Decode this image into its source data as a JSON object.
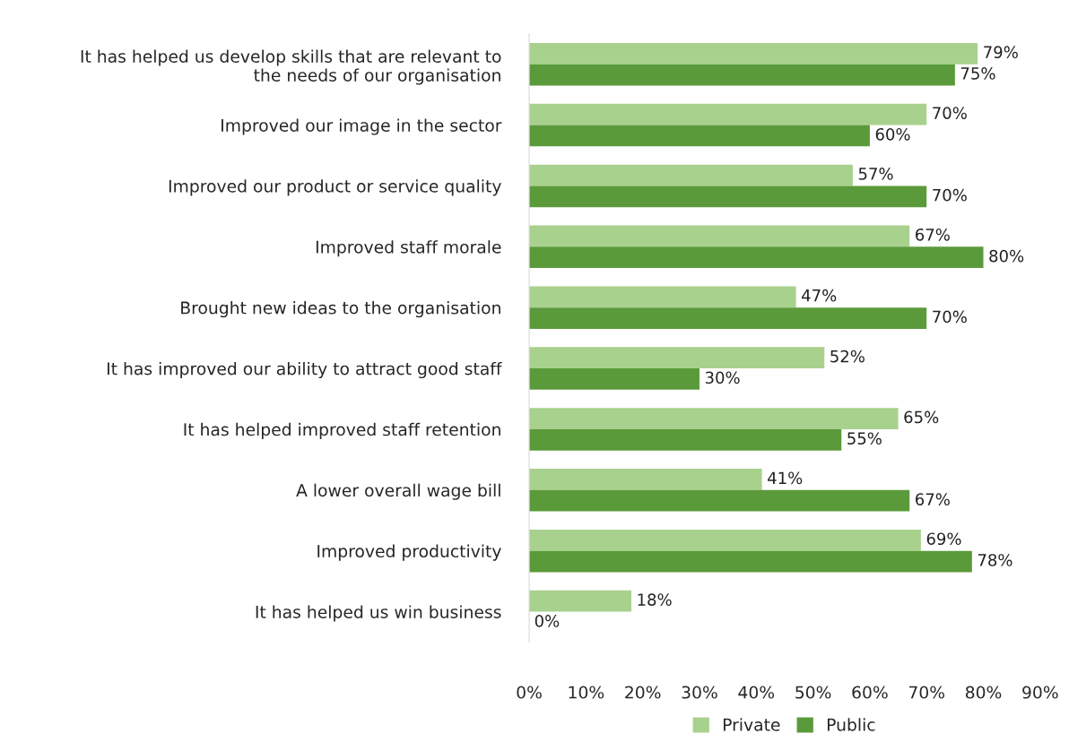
{
  "chart_data": {
    "type": "bar",
    "orientation": "horizontal",
    "categories": [
      "It has helped us develop skills that are relevant to\nthe needs of our organisation",
      "Improved our image in the sector",
      "Improved our product or service quality",
      "Improved staff morale",
      "Brought new ideas to the organisation",
      "It has improved our ability to attract good staff",
      "It has helped improved staff retention",
      "A lower overall wage bill",
      "Improved productivity",
      "It has helped us win business"
    ],
    "series": [
      {
        "name": "Private",
        "color": "#a9d18e",
        "values": [
          79,
          70,
          57,
          67,
          47,
          52,
          65,
          41,
          69,
          18
        ],
        "value_labels": [
          "79%",
          "70%",
          "57%",
          "67%",
          "47%",
          "52%",
          "65%",
          "41%",
          "69%",
          "18%"
        ]
      },
      {
        "name": "Public",
        "color": "#5b9a3a",
        "values": [
          75,
          60,
          70,
          80,
          70,
          30,
          55,
          67,
          78,
          0
        ],
        "value_labels": [
          "75%",
          "60%",
          "70%",
          "80%",
          "70%",
          "30%",
          "55%",
          "67%",
          "78%",
          "0%"
        ]
      }
    ],
    "xlim": [
      0,
      90
    ],
    "xticks": [
      {
        "value": 0,
        "label": "0%"
      },
      {
        "value": 10,
        "label": "10%"
      },
      {
        "value": 20,
        "label": "20%"
      },
      {
        "value": 30,
        "label": "30%"
      },
      {
        "value": 40,
        "label": "40%"
      },
      {
        "value": 50,
        "label": "50%"
      },
      {
        "value": 60,
        "label": "60%"
      },
      {
        "value": 70,
        "label": "70%"
      },
      {
        "value": 80,
        "label": "80%"
      },
      {
        "value": 90,
        "label": "90%"
      }
    ],
    "grid": false,
    "legend": "bottom"
  }
}
